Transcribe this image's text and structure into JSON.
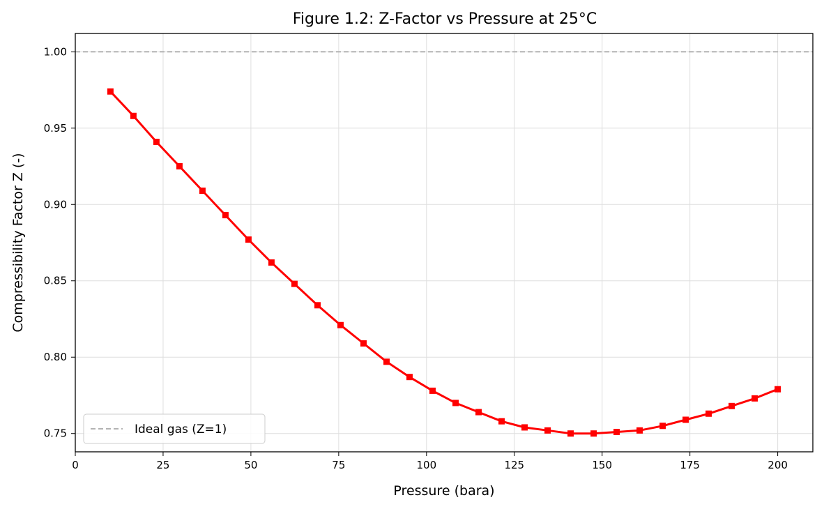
{
  "chart_data": {
    "type": "line",
    "title": "Figure 1.2: Z-Factor vs Pressure at 25°C",
    "xlabel": "Pressure (bara)",
    "ylabel": "Compressibility Factor Z (-)",
    "xlim": [
      0,
      210
    ],
    "ylim": [
      0.738,
      1.012
    ],
    "xticks": [
      0,
      25,
      50,
      75,
      100,
      125,
      150,
      175,
      200
    ],
    "xtick_labels": [
      "0",
      "25",
      "50",
      "75",
      "100",
      "125",
      "150",
      "175",
      "200"
    ],
    "yticks": [
      0.75,
      0.8,
      0.85,
      0.9,
      0.95,
      1.0
    ],
    "ytick_labels": [
      "0.75",
      "0.80",
      "0.85",
      "0.90",
      "0.95",
      "1.00"
    ],
    "grid": true,
    "legend_position": "lower-left",
    "series": [
      {
        "color": "#ff0000",
        "marker": "square",
        "x": [
          10.0,
          16.55,
          23.1,
          29.66,
          36.21,
          42.76,
          49.31,
          55.86,
          62.41,
          68.97,
          75.52,
          82.07,
          88.62,
          95.17,
          101.72,
          108.28,
          114.83,
          121.38,
          127.93,
          134.48,
          141.03,
          147.59,
          154.14,
          160.69,
          167.24,
          173.79,
          180.34,
          186.9,
          193.45,
          200.0
        ],
        "y": [
          0.974,
          0.958,
          0.941,
          0.925,
          0.909,
          0.893,
          0.877,
          0.862,
          0.848,
          0.834,
          0.821,
          0.809,
          0.797,
          0.787,
          0.778,
          0.77,
          0.764,
          0.758,
          0.754,
          0.752,
          0.75,
          0.75,
          0.751,
          0.752,
          0.755,
          0.759,
          0.763,
          0.768,
          0.773,
          0.779
        ]
      }
    ],
    "reference_lines": [
      {
        "name": "Ideal gas (Z=1)",
        "y": 1.0,
        "color": "#b3b3b3",
        "style": "dashed"
      }
    ]
  }
}
